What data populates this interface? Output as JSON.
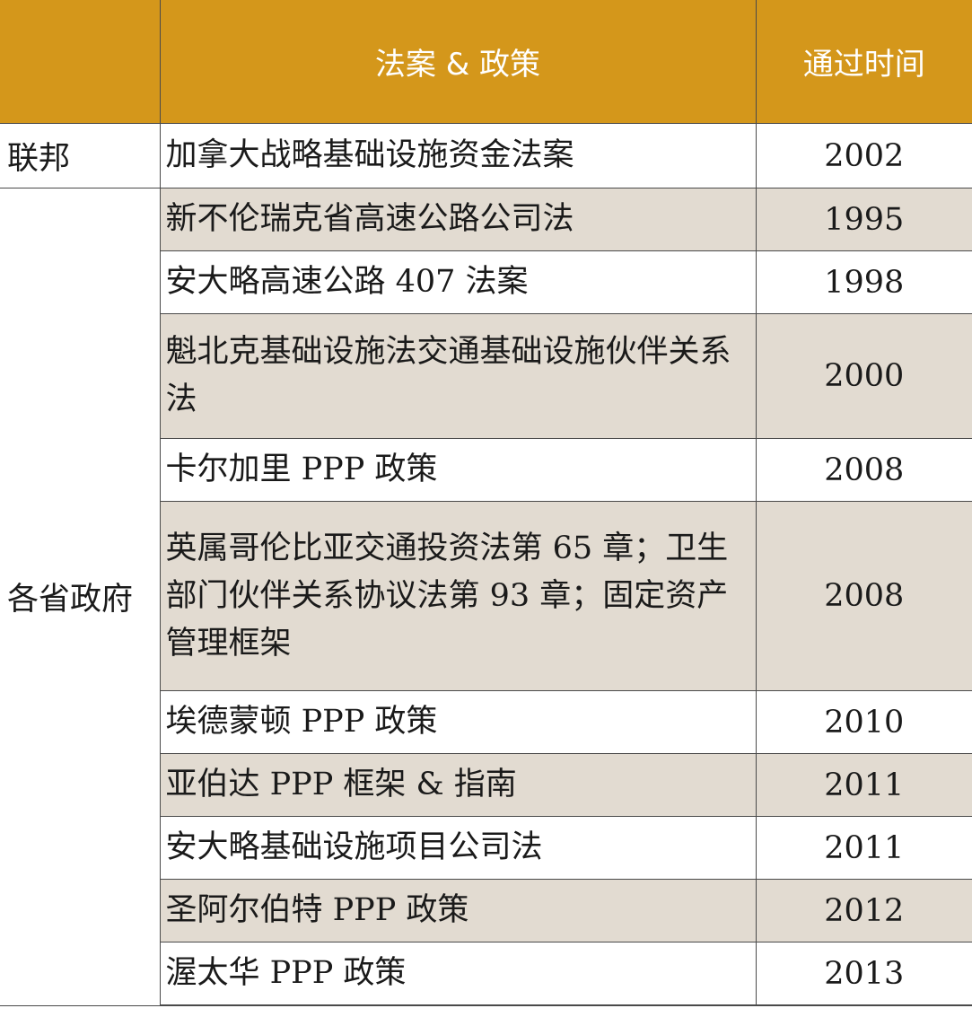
{
  "header": {
    "level": "",
    "policy": "法案 & 政策",
    "year": "通过时间"
  },
  "groups": {
    "federal": "联邦",
    "provincial": "各省政府"
  },
  "rows": [
    {
      "policy": "加拿大战略基础设施资金法案",
      "year": "2002"
    },
    {
      "policy": "新不伦瑞克省高速公路公司法",
      "year": "1995"
    },
    {
      "policy": "安大略高速公路 407 法案",
      "year": "1998"
    },
    {
      "policy": "魁北克基础设施法交通基础设施伙伴关系法",
      "year": "2000"
    },
    {
      "policy": "卡尔加里 PPP 政策",
      "year": "2008"
    },
    {
      "policy": "英属哥伦比亚交通投资法第 65 章；卫生部门伙伴关系协议法第 93 章；固定资产管理框架",
      "year": "2008"
    },
    {
      "policy": "埃德蒙顿 PPP 政策",
      "year": "2010"
    },
    {
      "policy": "亚伯达 PPP 框架 & 指南",
      "year": "2011"
    },
    {
      "policy": "安大略基础设施项目公司法",
      "year": "2011"
    },
    {
      "policy": "圣阿尔伯特 PPP 政策",
      "year": "2012"
    },
    {
      "policy": "渥太华 PPP 政策",
      "year": "2013"
    }
  ],
  "colors": {
    "header_bg": "#d4971b",
    "header_text": "#ffffff",
    "shaded_row_bg": "#e2dbd1",
    "plain_row_bg": "#ffffff",
    "border": "#4a4a4a"
  }
}
